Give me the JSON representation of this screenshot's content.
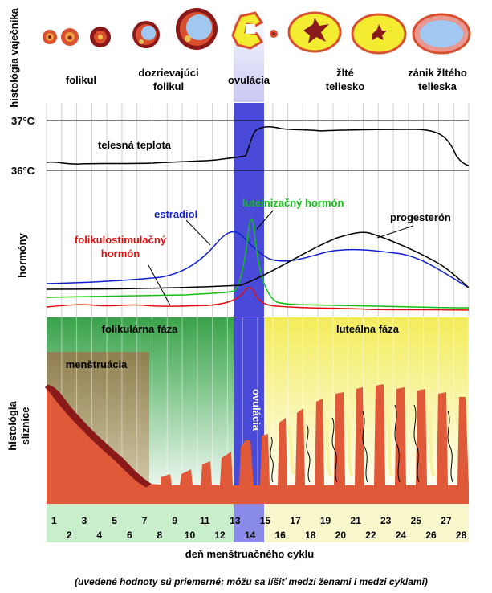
{
  "sections": {
    "ovary": "histológia vaječníka",
    "hormones": "hormóny",
    "endometrium": "histológia sliznice"
  },
  "stages": [
    "folikul",
    "dozrievajúci folikul",
    "ovulácia",
    "žlté teliesko",
    "zánik žltého telieska"
  ],
  "temperature": {
    "label": "telesná teplota",
    "high": "37°C",
    "low": "36°C"
  },
  "hormones": {
    "estradiol": "estradiol",
    "lh": "luteinizačný hormón",
    "progesterone": "progesterón",
    "fsh": "folikulostimulačný hormón"
  },
  "phases": {
    "follicular": "folikulárna fáza",
    "luteal": "luteálna fáza",
    "menstruation": "menštruácia",
    "ovulation": "ovulácia"
  },
  "days": [
    1,
    2,
    3,
    4,
    5,
    6,
    7,
    8,
    9,
    10,
    11,
    12,
    13,
    14,
    15,
    16,
    17,
    18,
    19,
    20,
    21,
    22,
    23,
    24,
    25,
    26,
    27,
    28
  ],
  "x_axis_label": "deň menštruačného cyklu",
  "footnote": "(uvedené hodnoty sú priemerné; môžu sa líšiť medzi ženami i medzi cyklami)",
  "colors": {
    "ovulation_band": "#4a4ad8",
    "follicular": "#3aa24a",
    "luteal": "#f5f080",
    "menstruation": "#9a8a5a",
    "endometrium": "#e05a3a",
    "fsh": "#e01010",
    "lh": "#10c010",
    "estradiol": "#1020d0",
    "progesterone": "#000000"
  }
}
